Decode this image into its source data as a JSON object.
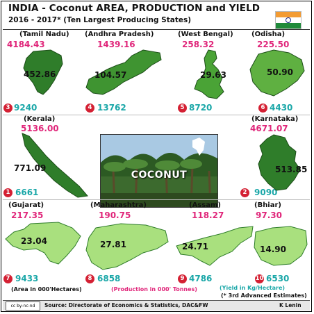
{
  "header": {
    "title": "INDIA - Coconut AREA, PRODUCTION and  YIELD",
    "subtitle": "2016 - 2017* (Ten Largest Producing States)"
  },
  "states": [
    {
      "name": "(Tamil Nadu)",
      "area": "4184.43",
      "production": "452.86",
      "rank": "3",
      "yield": "9240"
    },
    {
      "name": "(Andhra Pradesh)",
      "area": "1439.16",
      "production": "104.57",
      "rank": "4",
      "yield": "13762"
    },
    {
      "name": "(West Bengal)",
      "area": "258.32",
      "production": "29.63",
      "rank": "5",
      "yield": "8720"
    },
    {
      "name": "(Odisha)",
      "area": "225.50",
      "production": "50.90",
      "rank": "6",
      "yield": "4430"
    },
    {
      "name": "(Kerala)",
      "area": "5136.00",
      "production": "771.09",
      "rank": "1",
      "yield": "6661"
    },
    {
      "name": "(Karnataka)",
      "area": "4671.07",
      "production": "513.85",
      "rank": "2",
      "yield": "9090"
    },
    {
      "name": "(Gujarat)",
      "area": "217.35",
      "production": "23.04",
      "rank": "7",
      "yield": "9433"
    },
    {
      "name": "(Maharashtra)",
      "area": "190.75",
      "production": "27.81",
      "rank": "8",
      "yield": "6858"
    },
    {
      "name": "(Assam)",
      "area": "118.27",
      "production": "24.71",
      "rank": "9",
      "yield": "4786"
    },
    {
      "name": "(Bhiar)",
      "area": "97.30",
      "production": "14.90",
      "rank": "10",
      "yield": "6530"
    }
  ],
  "center": {
    "label": "COCONUT"
  },
  "legend": {
    "area": "(Area in 000'Hectares)",
    "production": "(Production in 000' Tonnes)",
    "yield": "(Yield in Kg/Hectare)",
    "estimate": "(* 3rd Advanced Estimates)"
  },
  "footer": {
    "license": "cc by-nc-nd",
    "source": "Source: Directorate of Economics & Statistics, DAC&FW",
    "author": "K Lenin"
  },
  "colors": {
    "area": "#e0267a",
    "yield": "#1aa7a8",
    "rank_badge": "#d42033",
    "map_dark": "#2f7d2a",
    "map_mid": "#5fb041",
    "map_light": "#a9e07e"
  }
}
